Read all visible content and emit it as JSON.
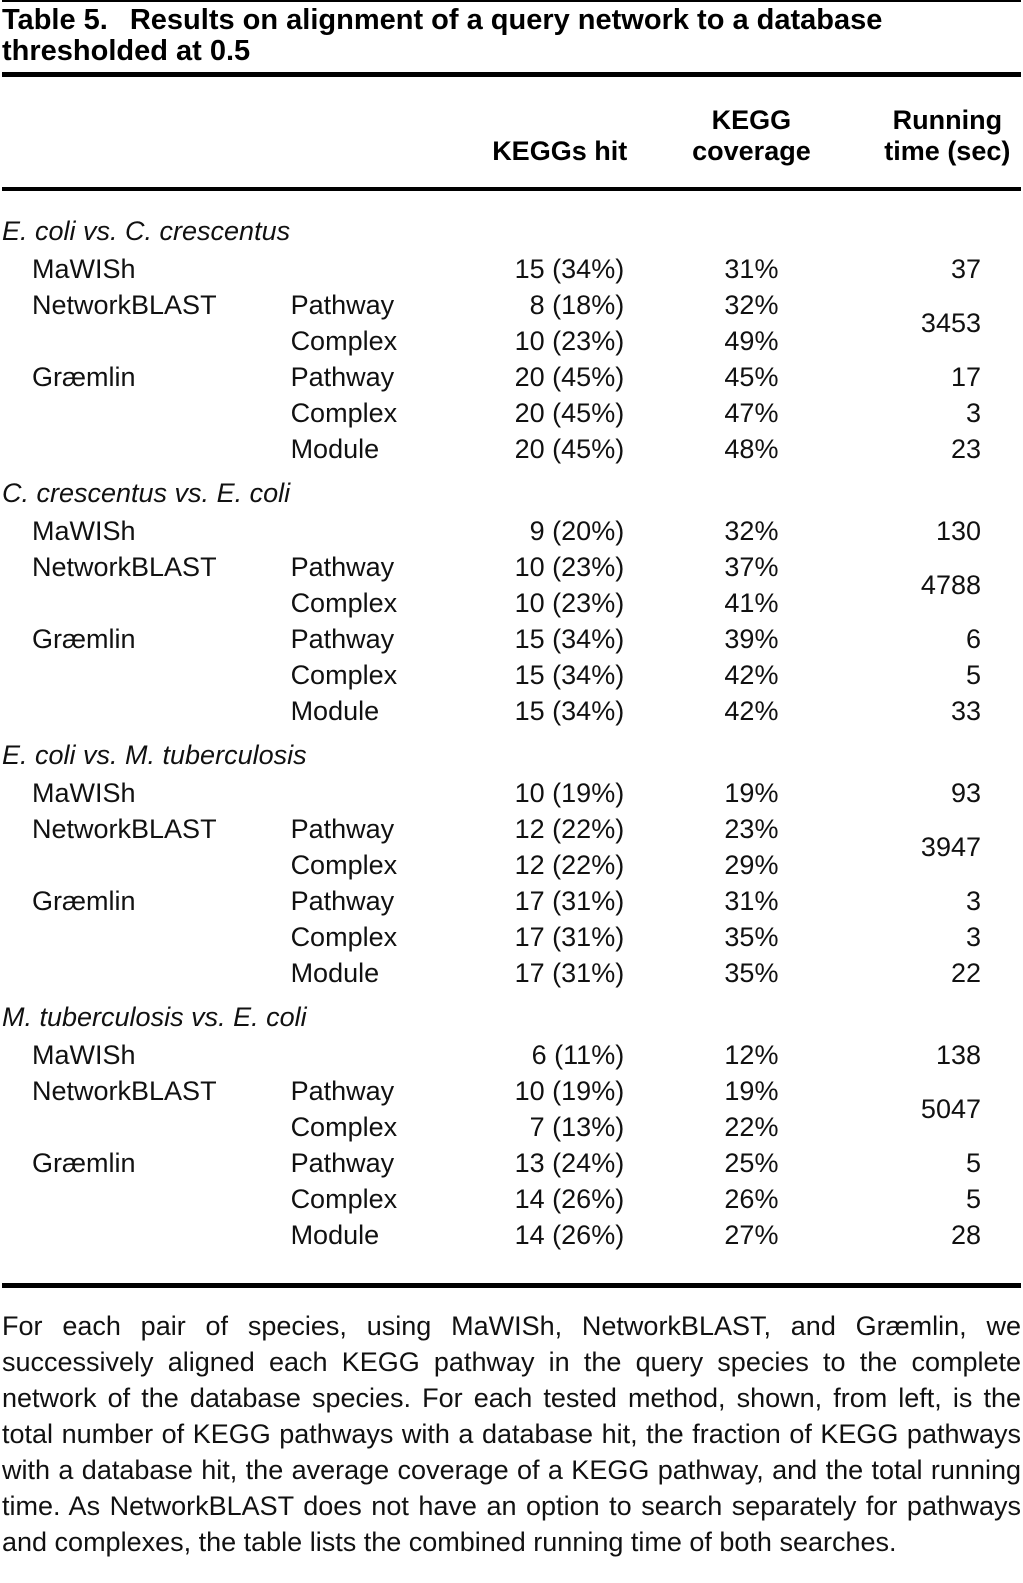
{
  "title": {
    "label": "Table 5.",
    "line1": "Results on alignment of a query network to a database",
    "line2": "thresholded at 0.5"
  },
  "header": {
    "kegg_hit": "KEGGs hit",
    "coverage_line1": "KEGG",
    "coverage_line2": "coverage",
    "time_line1": "Running",
    "time_line2": "time (sec)"
  },
  "labels": {
    "mawish": "MaWISh",
    "networkblast": "NetworkBLAST",
    "graemlin": "Græmlin",
    "pathway": "Pathway",
    "complex": "Complex",
    "module": "Module"
  },
  "table": {
    "sections": [
      {
        "species_pair": "E. coli vs. C. crescentus",
        "mawish": {
          "hit": "15 (34%)",
          "coverage": "31%",
          "time": "37"
        },
        "networkblast": {
          "pathway": {
            "hit": "8 (18%)",
            "coverage": "32%"
          },
          "complex": {
            "hit": "10 (23%)",
            "coverage": "49%"
          },
          "time": "3453"
        },
        "graemlin": {
          "pathway": {
            "hit": "20 (45%)",
            "coverage": "45%",
            "time": "17"
          },
          "complex": {
            "hit": "20 (45%)",
            "coverage": "47%",
            "time": "3"
          },
          "module": {
            "hit": "20 (45%)",
            "coverage": "48%",
            "time": "23"
          }
        }
      },
      {
        "species_pair": "C. crescentus vs. E. coli",
        "mawish": {
          "hit": "9 (20%)",
          "coverage": "32%",
          "time": "130"
        },
        "networkblast": {
          "pathway": {
            "hit": "10 (23%)",
            "coverage": "37%"
          },
          "complex": {
            "hit": "10 (23%)",
            "coverage": "41%"
          },
          "time": "4788"
        },
        "graemlin": {
          "pathway": {
            "hit": "15 (34%)",
            "coverage": "39%",
            "time": "6"
          },
          "complex": {
            "hit": "15 (34%)",
            "coverage": "42%",
            "time": "5"
          },
          "module": {
            "hit": "15 (34%)",
            "coverage": "42%",
            "time": "33"
          }
        }
      },
      {
        "species_pair": "E. coli vs. M. tuberculosis",
        "mawish": {
          "hit": "10 (19%)",
          "coverage": "19%",
          "time": "93"
        },
        "networkblast": {
          "pathway": {
            "hit": "12 (22%)",
            "coverage": "23%"
          },
          "complex": {
            "hit": "12 (22%)",
            "coverage": "29%"
          },
          "time": "3947"
        },
        "graemlin": {
          "pathway": {
            "hit": "17 (31%)",
            "coverage": "31%",
            "time": "3"
          },
          "complex": {
            "hit": "17 (31%)",
            "coverage": "35%",
            "time": "3"
          },
          "module": {
            "hit": "17 (31%)",
            "coverage": "35%",
            "time": "22"
          }
        }
      },
      {
        "species_pair": "M. tuberculosis vs. E. coli",
        "mawish": {
          "hit": "6 (11%)",
          "coverage": "12%",
          "time": "138"
        },
        "networkblast": {
          "pathway": {
            "hit": "10 (19%)",
            "coverage": "19%"
          },
          "complex": {
            "hit": "7 (13%)",
            "coverage": "22%"
          },
          "time": "5047"
        },
        "graemlin": {
          "pathway": {
            "hit": "13 (24%)",
            "coverage": "25%",
            "time": "5"
          },
          "complex": {
            "hit": "14 (26%)",
            "coverage": "26%",
            "time": "5"
          },
          "module": {
            "hit": "14 (26%)",
            "coverage": "27%",
            "time": "28"
          }
        }
      }
    ]
  },
  "footnote": "For each pair of species, using MaWISh, NetworkBLAST, and Græmlin, we successively aligned each KEGG pathway in the query species to the complete network of the database species. For each tested method, shown, from left, is the total number of KEGG pathways with a database hit, the fraction of KEGG pathways with a database hit, the average coverage of a KEGG pathway, and the total running time. As NetworkBLAST does not have an option to search separately for pathways and complexes, the table lists the combined running time of both searches."
}
